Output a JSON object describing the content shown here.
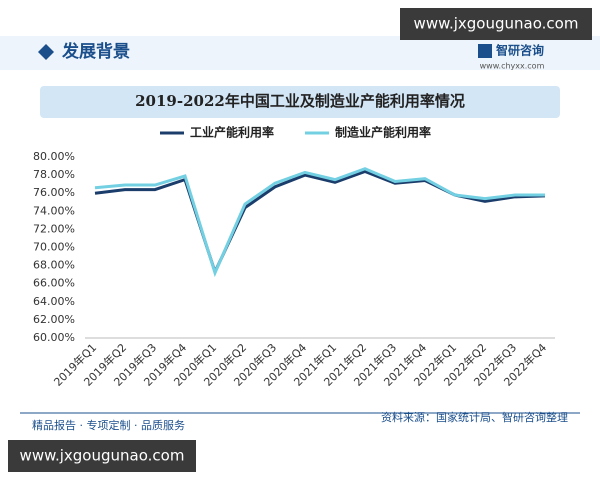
{
  "header": {
    "title": "发展背景",
    "brand": "智研咨询",
    "site": "www.chyxx.com"
  },
  "overlay": {
    "top": "www.jxgougunao.com",
    "bottom": "www.jxgougunao.com"
  },
  "footer": {
    "left": "精品报告 · 专项定制 · 品质服务",
    "right": "资料来源：国家统计局、智研咨询整理"
  },
  "chart_data": {
    "type": "line",
    "title": "2019-2022年中国工业及制造业产能利用率情况",
    "categories": [
      "2019年Q1",
      "2019年Q2",
      "2019年Q3",
      "2019年Q4",
      "2020年Q1",
      "2020年Q2",
      "2020年Q3",
      "2020年Q4",
      "2021年Q1",
      "2021年Q2",
      "2021年Q3",
      "2021年Q4",
      "2022年Q1",
      "2022年Q2",
      "2022年Q3",
      "2022年Q4"
    ],
    "series": [
      {
        "name": "工业产能利用率",
        "color": "#1b3d6b",
        "values": [
          76.0,
          76.4,
          76.4,
          77.5,
          67.3,
          74.4,
          76.7,
          78.0,
          77.2,
          78.4,
          77.1,
          77.4,
          75.8,
          75.1,
          75.6,
          75.7
        ]
      },
      {
        "name": "制造业产能利用率",
        "color": "#72d0e2",
        "values": [
          76.6,
          76.9,
          76.9,
          77.9,
          67.2,
          74.8,
          77.1,
          78.3,
          77.5,
          78.7,
          77.3,
          77.6,
          75.8,
          75.4,
          75.8,
          75.8
        ]
      }
    ],
    "ylim": [
      60,
      80
    ],
    "yticks": [
      {
        "value": 60,
        "label": "60.00%"
      },
      {
        "value": 62,
        "label": "62.00%"
      },
      {
        "value": 64,
        "label": "64.00%"
      },
      {
        "value": 66,
        "label": "66.00%"
      },
      {
        "value": 68,
        "label": "68.00%"
      },
      {
        "value": 70,
        "label": "70.00%"
      },
      {
        "value": 72,
        "label": "72.00%"
      },
      {
        "value": 74,
        "label": "74.00%"
      },
      {
        "value": 76,
        "label": "76.00%"
      },
      {
        "value": 78,
        "label": "78.00%"
      },
      {
        "value": 80,
        "label": "80.00%"
      }
    ],
    "grid": false
  }
}
